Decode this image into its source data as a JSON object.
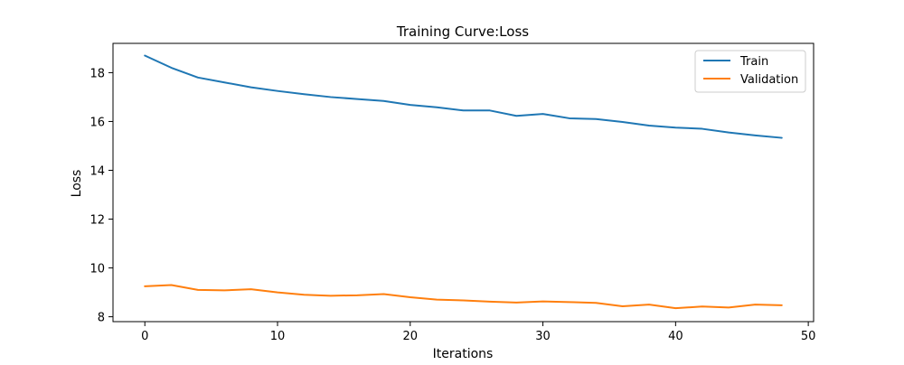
{
  "chart_data": {
    "type": "line",
    "title": "Training Curve:Loss",
    "xlabel": "Iterations",
    "ylabel": "Loss",
    "xlim": [
      -2.4,
      50.4
    ],
    "ylim": [
      7.8,
      19.2
    ],
    "xticks": [
      0,
      10,
      20,
      30,
      40,
      50
    ],
    "yticks": [
      8,
      10,
      12,
      14,
      16,
      18
    ],
    "grid": false,
    "legend_position": "top-right",
    "x": [
      0,
      2,
      4,
      6,
      8,
      10,
      12,
      14,
      16,
      18,
      20,
      22,
      24,
      26,
      28,
      30,
      32,
      34,
      36,
      38,
      40,
      42,
      44,
      46,
      48
    ],
    "series": [
      {
        "name": "Train",
        "color": "#1f77b4",
        "values": [
          18.7,
          18.2,
          17.8,
          17.6,
          17.4,
          17.25,
          17.12,
          17.0,
          16.92,
          16.84,
          16.68,
          16.58,
          16.45,
          16.45,
          16.23,
          16.31,
          16.13,
          16.1,
          15.98,
          15.83,
          15.75,
          15.7,
          15.55,
          15.43,
          15.33
        ]
      },
      {
        "name": "Validation",
        "color": "#ff7f0e",
        "values": [
          9.25,
          9.3,
          9.1,
          9.08,
          9.13,
          9.0,
          8.9,
          8.86,
          8.88,
          8.93,
          8.8,
          8.7,
          8.67,
          8.62,
          8.58,
          8.63,
          8.6,
          8.57,
          8.43,
          8.5,
          8.35,
          8.42,
          8.38,
          8.5,
          8.47
        ]
      }
    ]
  }
}
